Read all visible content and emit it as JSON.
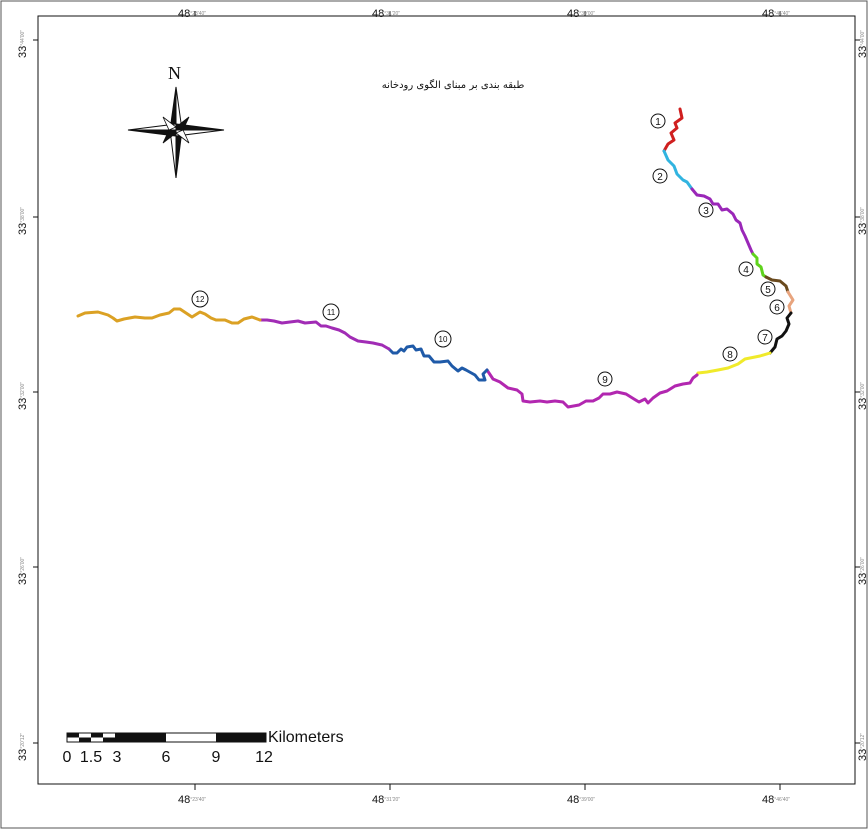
{
  "map": {
    "title": "طبقه بندی بر مبنای الگوی رودخانه",
    "north_label": "N",
    "grid": {
      "x_ticks": [
        {
          "deg": "48",
          "fine": "°23'40\""
        },
        {
          "deg": "48",
          "fine": "°31'20\""
        },
        {
          "deg": "48",
          "fine": "°39'00\""
        },
        {
          "deg": "48",
          "fine": "°46'40\""
        }
      ],
      "y_ticks": [
        {
          "deg": "33",
          "fine": "°44'00\""
        },
        {
          "deg": "33",
          "fine": "°38'00\""
        },
        {
          "deg": "33",
          "fine": "°32'00\""
        },
        {
          "deg": "33",
          "fine": "°26'00\""
        },
        {
          "deg": "33",
          "fine": "°20'12\""
        }
      ]
    },
    "scale_bar": {
      "labels": [
        "0",
        "1.5",
        "3",
        "6",
        "9",
        "12"
      ],
      "unit": "Kilometers"
    },
    "segments": [
      {
        "id": "1",
        "color": "#d01f1f"
      },
      {
        "id": "2",
        "color": "#31b4e0"
      },
      {
        "id": "3",
        "color": "#9a27b8"
      },
      {
        "id": "4",
        "color": "#5fd31c"
      },
      {
        "id": "5",
        "color": "#6a4a1e"
      },
      {
        "id": "6",
        "color": "#e8a47e"
      },
      {
        "id": "7",
        "color": "#111111"
      },
      {
        "id": "8",
        "color": "#f0ea2a"
      },
      {
        "id": "9",
        "color": "#b227b0"
      },
      {
        "id": "10",
        "color": "#1f5aa8"
      },
      {
        "id": "11",
        "color": "#a12cb5"
      },
      {
        "id": "12",
        "color": "#dba124"
      }
    ]
  }
}
